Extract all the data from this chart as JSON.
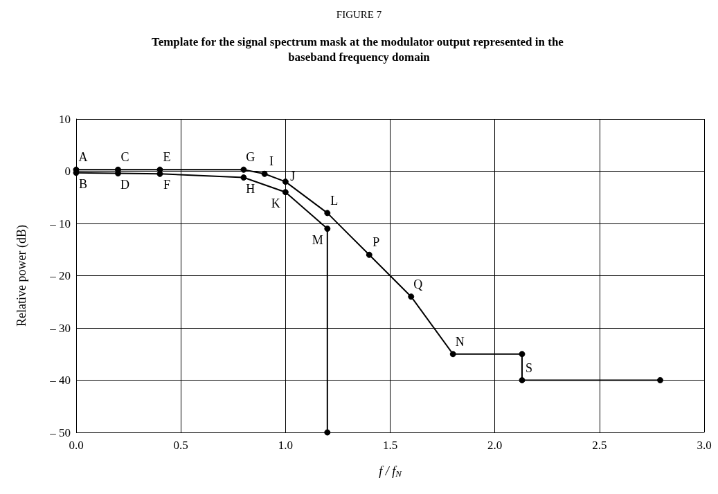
{
  "chart_data": {
    "type": "line",
    "title": "FIGURE 7",
    "subtitle": "Template for the signal spectrum mask at the modulator output represented in the baseband frequency domain",
    "xlabel": "f / f$_{N}$",
    "ylabel": "Relative power (dB)",
    "series": [
      {
        "color": "#000000",
        "x": [
          0,
          0.2,
          0.4,
          0.8,
          0.9,
          1.0,
          1.2,
          1.4,
          1.6,
          1.8,
          2.13,
          2.13,
          2.79
        ],
        "values": [
          0.3,
          0.3,
          0.3,
          0.3,
          -0.5,
          -2,
          -8,
          -16,
          -24,
          -35,
          -35,
          -40,
          -40
        ]
      },
      {
        "color": "#000000",
        "x": [
          0,
          0.2,
          0.4,
          0.8,
          1.0,
          1.2,
          1.2
        ],
        "values": [
          -0.3,
          -0.4,
          -0.5,
          -1.2,
          -4,
          -11,
          -50
        ]
      }
    ],
    "xlim": [
      0,
      3
    ],
    "ylim": [
      -50,
      10
    ],
    "xticks": [
      {
        "value": 0,
        "label": "0.0"
      },
      0.5,
      {
        "value": 1,
        "label": "1.0"
      },
      1.5,
      {
        "value": 2,
        "label": "2.0"
      },
      2.5,
      {
        "value": 3,
        "label": "3.0"
      }
    ],
    "yticks": [
      {
        "value": -50,
        "label": "– 50"
      },
      {
        "value": -40,
        "label": "– 40"
      },
      {
        "value": -30,
        "label": "– 30"
      },
      {
        "value": -20,
        "label": "– 20"
      },
      {
        "value": -10,
        "label": "– 10"
      },
      0,
      10
    ],
    "grid": true,
    "marker": "circle",
    "line_style": "solid",
    "annotations": [
      {
        "text": "A",
        "x": 0,
        "y": 0.3
      },
      {
        "text": "C",
        "x": 0.2,
        "y": 0.3
      },
      {
        "text": "E",
        "x": 0.4,
        "y": 0.3
      },
      {
        "text": "G",
        "x": 0.8,
        "y": 0.3
      },
      {
        "text": "I",
        "x": 0.9,
        "y": -0.5
      },
      {
        "text": "J",
        "x": 1.0,
        "y": -2
      },
      {
        "text": "L",
        "x": 1.2,
        "y": -8
      },
      {
        "text": "P",
        "x": 1.4,
        "y": -16
      },
      {
        "text": "Q",
        "x": 1.6,
        "y": -24
      },
      {
        "text": "N",
        "x": 1.8,
        "y": -35
      },
      {
        "text": "S",
        "x": 2.13,
        "y": -40
      },
      {
        "text": "B",
        "x": 0,
        "y": -0.3
      },
      {
        "text": "D",
        "x": 0.2,
        "y": -0.4
      },
      {
        "text": "F",
        "x": 0.4,
        "y": -0.5
      },
      {
        "text": "H",
        "x": 0.8,
        "y": -1.2
      },
      {
        "text": "K",
        "x": 1.0,
        "y": -4
      },
      {
        "text": "M",
        "x": 1.2,
        "y": -11
      }
    ]
  }
}
